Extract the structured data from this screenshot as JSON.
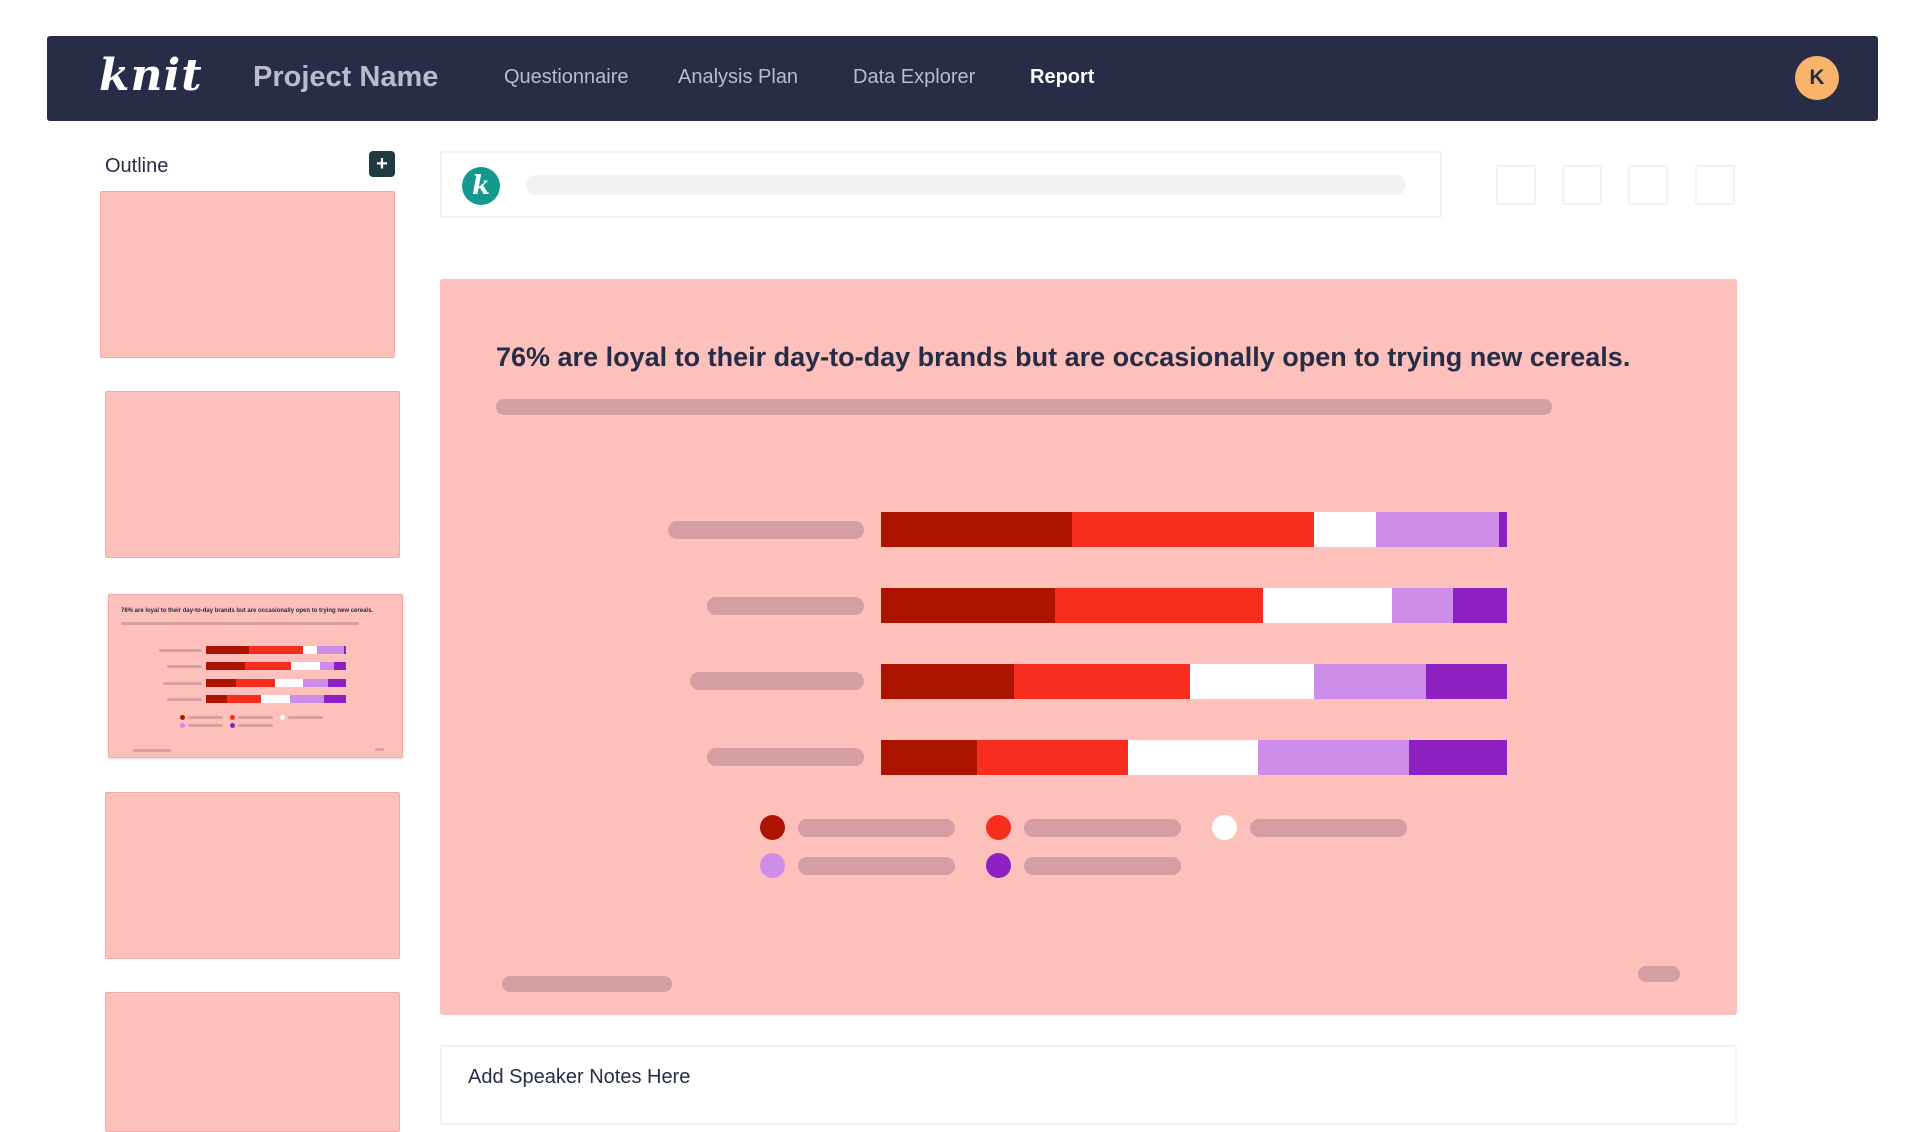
{
  "app": {
    "logo_text": "knit",
    "project_name": "Project Name"
  },
  "nav": {
    "items": [
      {
        "label": "Questionnaire",
        "active": false
      },
      {
        "label": "Analysis Plan",
        "active": false
      },
      {
        "label": "Data Explorer",
        "active": false
      },
      {
        "label": "Report",
        "active": true
      }
    ],
    "avatar_initial": "K"
  },
  "outline": {
    "title": "Outline",
    "add_button": "+",
    "selected_slide_title": "76% are loyal to their day-to-day brands but are occasionally open to trying new cereals."
  },
  "toolbar": {
    "assistant_icon_text": "k"
  },
  "slide": {
    "title": "76% are loyal to their day-to-day brands but are occasionally open to trying new cereals."
  },
  "chart_data": {
    "type": "bar",
    "stacked": true,
    "orientation": "horizontal",
    "normalized": true,
    "categories": [
      "",
      "",
      "",
      ""
    ],
    "series": [
      {
        "color": "#ac1400",
        "values": [
          30.5,
          27.8,
          21.3,
          15.3
        ]
      },
      {
        "color": "#f72e1e",
        "values": [
          38.7,
          33.2,
          28.1,
          24.2
        ]
      },
      {
        "color": "#ffffff",
        "values": [
          9.8,
          20.7,
          19.8,
          20.7
        ]
      },
      {
        "color": "#ce8de8",
        "values": [
          19.7,
          9.6,
          17.8,
          24.2
        ]
      },
      {
        "color": "#8c20c0",
        "values": [
          1.3,
          8.7,
          13.0,
          15.6
        ]
      }
    ],
    "legend_placement": "bottom",
    "grid": false
  },
  "notes": {
    "label": "Add Speaker Notes Here"
  },
  "colors": {
    "nav_bg": "#272c47",
    "slide_bg": "#fdc0bb",
    "placeholder": "#d59ea2",
    "accent_teal": "#14998e",
    "avatar": "#f9b36a"
  }
}
